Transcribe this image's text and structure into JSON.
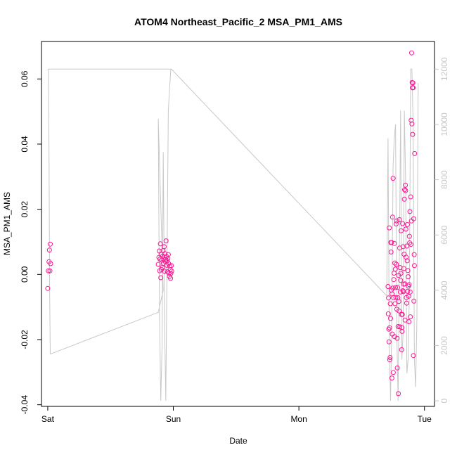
{
  "chart_data": {
    "type": "scatter",
    "title": "ATOM4 Northeast_Pacific_2 MSA_PM1_AMS",
    "xlabel": "Date",
    "ylabel": "MSA_PM1_AMS",
    "x_ticks": [
      "Sat",
      "Sun",
      "Mon",
      "Tue"
    ],
    "y_ticks": [
      "-0.04",
      "-0.02",
      "0.00",
      "0.02",
      "0.04",
      "0.06"
    ],
    "y2_ticks": [
      "0",
      "2000",
      "4000",
      "6000",
      "8000",
      "10000",
      "12000"
    ],
    "xlim": [
      -0.05,
      3.08
    ],
    "ylim": [
      -0.0405,
      0.0715
    ],
    "y2lim": [
      -200,
      13000
    ],
    "series": [
      {
        "role": "points",
        "color": "#ff1493",
        "points": [
          [
            0.0,
            -0.0043
          ],
          [
            0.005,
            0.0011
          ],
          [
            0.01,
            0.0039
          ],
          [
            0.013,
            0.0075
          ],
          [
            0.017,
            0.0011
          ],
          [
            0.02,
            0.0093
          ],
          [
            0.023,
            0.0033
          ],
          [
            0.88,
            0.0031
          ],
          [
            0.885,
            0.0052
          ],
          [
            0.888,
            0.0072
          ],
          [
            0.891,
            0.0011
          ],
          [
            0.894,
            0.0047
          ],
          [
            0.897,
            0.0094
          ],
          [
            0.9,
            -0.001
          ],
          [
            0.903,
            0.0062
          ],
          [
            0.906,
            0.0015
          ],
          [
            0.909,
            0.0044
          ],
          [
            0.912,
            0.0021
          ],
          [
            0.915,
            0.0056
          ],
          [
            0.918,
            0.0073
          ],
          [
            0.921,
            0.0034
          ],
          [
            0.924,
            0.0048
          ],
          [
            0.927,
            0.0085
          ],
          [
            0.93,
            0.001
          ],
          [
            0.933,
            0.0064
          ],
          [
            0.936,
            0.0039
          ],
          [
            0.939,
            0.0046
          ],
          [
            0.942,
            0.0103
          ],
          [
            0.945,
            0.0055
          ],
          [
            0.948,
            0.0028
          ],
          [
            0.951,
            0.0042
          ],
          [
            0.954,
            0.0008
          ],
          [
            0.957,
            0.0049
          ],
          [
            0.96,
            0.0061
          ],
          [
            0.963,
            0.0033
          ],
          [
            0.966,
            0.0004
          ],
          [
            0.969,
            -0.0006
          ],
          [
            0.972,
            0.0026
          ],
          [
            0.975,
            0.0014
          ],
          [
            0.978,
            -0.0012
          ],
          [
            0.981,
            0.0003
          ],
          [
            0.984,
            0.0027
          ],
          [
            0.987,
            0.001
          ],
          [
            2.71,
            -0.0037
          ],
          [
            2.712,
            -0.0121
          ],
          [
            2.714,
            -0.0072
          ],
          [
            2.716,
            -0.0168
          ],
          [
            2.718,
            -0.0207
          ],
          [
            2.72,
            0.0143
          ],
          [
            2.722,
            -0.0164
          ],
          [
            2.724,
            -0.0262
          ],
          [
            2.726,
            -0.0255
          ],
          [
            2.728,
            -0.009
          ],
          [
            2.73,
            -0.0135
          ],
          [
            2.732,
            0.0098
          ],
          [
            2.734,
            0.0069
          ],
          [
            2.736,
            -0.0048
          ],
          [
            2.738,
            0.0098
          ],
          [
            2.74,
            -0.0318
          ],
          [
            2.742,
            -0.006
          ],
          [
            2.744,
            -0.0183
          ],
          [
            2.746,
            0.0176
          ],
          [
            2.748,
            -0.0042
          ],
          [
            2.75,
            0.0295
          ],
          [
            2.752,
            -0.0301
          ],
          [
            2.754,
            -0.0071
          ],
          [
            2.756,
            -0.0016
          ],
          [
            2.758,
            0.0004
          ],
          [
            2.76,
            0.0095
          ],
          [
            2.762,
            -0.0191
          ],
          [
            2.764,
            0.0035
          ],
          [
            2.766,
            -0.009
          ],
          [
            2.768,
            0.0016
          ],
          [
            2.77,
            -0.004
          ],
          [
            2.772,
            -0.0071
          ],
          [
            2.774,
            0.0155
          ],
          [
            2.776,
            0.0031
          ],
          [
            2.778,
            0.0164
          ],
          [
            2.78,
            -0.0107
          ],
          [
            2.782,
            -0.0196
          ],
          [
            2.784,
            -0.0287
          ],
          [
            2.786,
            -0.004
          ],
          [
            2.788,
            -0.0071
          ],
          [
            2.79,
            -0.016
          ],
          [
            2.792,
            -0.0366
          ],
          [
            2.794,
            -0.0003
          ],
          [
            2.796,
            -0.0083
          ],
          [
            2.798,
            -0.0112
          ],
          [
            2.8,
            0.0168
          ],
          [
            2.802,
            0.0081
          ],
          [
            2.804,
            -0.0161
          ],
          [
            2.806,
            0.0021
          ],
          [
            2.808,
            -0.0054
          ],
          [
            2.81,
            -0.0018
          ],
          [
            2.812,
            0.0003
          ],
          [
            2.814,
            0.0134
          ],
          [
            2.816,
            -0.0123
          ],
          [
            2.818,
            -0.0231
          ],
          [
            2.82,
            -0.0163
          ],
          [
            2.822,
            -0.0175
          ],
          [
            2.824,
            -0.0123
          ],
          [
            2.826,
            0.0156
          ],
          [
            2.828,
            -0.005
          ],
          [
            2.83,
            0.0085
          ],
          [
            2.832,
            -0.0053
          ],
          [
            2.834,
            -0.003
          ],
          [
            2.836,
            0.0018
          ],
          [
            2.838,
            0.0062
          ],
          [
            2.84,
            0.0231
          ],
          [
            2.842,
            0.026
          ],
          [
            2.844,
            -0.0029
          ],
          [
            2.846,
            -0.014
          ],
          [
            2.848,
            0.0274
          ],
          [
            2.85,
            0.0257
          ],
          [
            2.852,
            0.0139
          ],
          [
            2.854,
            0.0053
          ],
          [
            2.856,
            -0.0071
          ],
          [
            2.858,
            -0.0088
          ],
          [
            2.86,
            0.0087
          ],
          [
            2.862,
            0.0042
          ],
          [
            2.864,
            0.0153
          ],
          [
            2.866,
            -0.0052
          ],
          [
            2.868,
            0.0012
          ],
          [
            2.87,
            -0.0007
          ],
          [
            2.872,
            -0.0036
          ],
          [
            2.874,
            -0.0067
          ],
          [
            2.876,
            -0.0145
          ],
          [
            2.878,
            -0.0031
          ],
          [
            2.88,
            0.0117
          ],
          [
            2.882,
            0.0097
          ],
          [
            2.884,
            0.0193
          ],
          [
            2.886,
            -0.0054
          ],
          [
            2.888,
            -0.013
          ],
          [
            2.89,
            0.0238
          ],
          [
            2.892,
            0.0092
          ],
          [
            2.894,
            0.0473
          ],
          [
            2.896,
            0.0164
          ],
          [
            2.898,
            0.068
          ],
          [
            2.9,
            0.0462
          ],
          [
            2.902,
            0.0589
          ],
          [
            2.904,
            0.0573
          ],
          [
            2.906,
            0.043
          ],
          [
            2.908,
            0.0588
          ],
          [
            2.91,
            0.0573
          ],
          [
            2.912,
            -0.0249
          ],
          [
            2.914,
            0.0171
          ],
          [
            2.916,
            -0.0082
          ],
          [
            2.918,
            0.0061
          ],
          [
            2.92,
            0.0027
          ],
          [
            2.922,
            0.0371
          ]
        ]
      },
      {
        "role": "line-right-axis",
        "color": "#c8c8c8",
        "points": [
          [
            0.0,
            12000
          ],
          [
            0.005,
            12000
          ],
          [
            0.01,
            9000
          ],
          [
            0.015,
            4000
          ],
          [
            0.02,
            1700
          ],
          [
            0.025,
            1700
          ],
          [
            0.88,
            3200
          ],
          [
            0.92,
            4000
          ],
          [
            0.88,
            10200
          ],
          [
            0.89,
            3000
          ],
          [
            0.9,
            0
          ],
          [
            0.91,
            2000
          ],
          [
            0.92,
            9000
          ],
          [
            0.93,
            3000
          ],
          [
            0.94,
            0
          ],
          [
            0.95,
            5000
          ],
          [
            0.96,
            10500
          ],
          [
            0.97,
            11300
          ],
          [
            0.98,
            12000
          ],
          [
            0.985,
            12000
          ],
          [
            0.005,
            12000
          ],
          [
            0.985,
            12000
          ],
          [
            2.7,
            3800
          ],
          [
            2.71,
            9500
          ],
          [
            2.72,
            2000
          ],
          [
            2.73,
            0
          ],
          [
            2.74,
            3000
          ],
          [
            2.75,
            8500
          ],
          [
            2.76,
            9500
          ],
          [
            2.77,
            10000
          ],
          [
            2.78,
            2500
          ],
          [
            2.79,
            0
          ],
          [
            2.8,
            5000
          ],
          [
            2.81,
            10500
          ],
          [
            2.82,
            1500
          ],
          [
            2.83,
            2500
          ],
          [
            2.84,
            10500
          ],
          [
            2.85,
            8000
          ],
          [
            2.86,
            1000
          ],
          [
            2.87,
            1500
          ],
          [
            2.88,
            4000
          ],
          [
            2.89,
            12000
          ],
          [
            2.9,
            12000
          ],
          [
            2.91,
            10000
          ],
          [
            2.92,
            1500
          ],
          [
            2.93,
            500
          ],
          [
            2.94,
            3000
          ],
          [
            2.95,
            11500
          ]
        ]
      }
    ]
  }
}
